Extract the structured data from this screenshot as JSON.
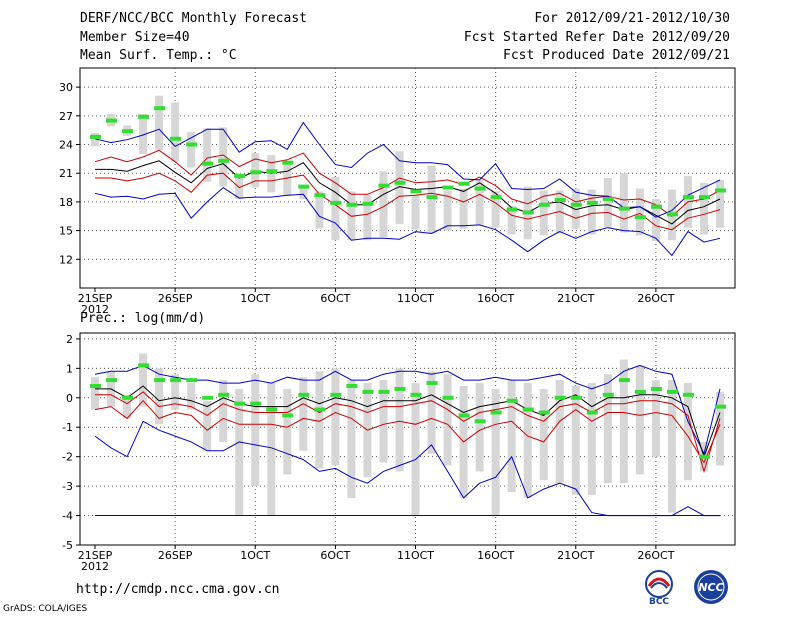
{
  "header": {
    "title": "DERF/NCC/BCC Monthly Forecast",
    "member": "Member Size=40",
    "variable": "Mean Surf. Temp.: °C",
    "period": "For 2012/09/21-2012/10/30",
    "refer": "Fcst Started Refer Date 2012/09/20",
    "produced": "Fcst Produced Date 2012/09/21"
  },
  "footer": {
    "url": "http://cmdp.ncc.cma.gov.cn",
    "grads": "GrADS: COLA/IGES",
    "logo1": "BCC",
    "logo2": "NCC"
  },
  "colors": {
    "envelope": "#0000cc",
    "spread": "#cc0000",
    "mean": "#000000",
    "observed": "#33dd33",
    "box": "#d6d6d6",
    "minline": "#0000cc"
  },
  "chart_data": [
    {
      "type": "line",
      "title": "Mean Surf. Temp.: °C",
      "x": [
        "21SEP",
        "22",
        "23",
        "24",
        "25",
        "26SEP",
        "27",
        "28",
        "29",
        "30",
        "1OCT",
        "2",
        "3",
        "4",
        "5",
        "6OCT",
        "7",
        "8",
        "9",
        "10",
        "11OCT",
        "12",
        "13",
        "14",
        "15",
        "16OCT",
        "17",
        "18",
        "19",
        "20",
        "21OCT",
        "22",
        "23",
        "24",
        "25",
        "26OCT",
        "27",
        "28",
        "29",
        "30"
      ],
      "xticks": [
        "21SEP",
        "26SEP",
        "1OCT",
        "6OCT",
        "11OCT",
        "16OCT",
        "21OCT",
        "26OCT"
      ],
      "xtick_year": "2012",
      "ylim": [
        9,
        32
      ],
      "yticks": [
        12,
        15,
        18,
        21,
        24,
        27,
        30
      ],
      "series": [
        {
          "name": "max",
          "values": [
            18.9,
            18.5,
            18.6,
            18.3,
            18.8,
            18.9,
            16.3,
            18,
            19.5,
            18.4,
            18.5,
            18.5,
            18.7,
            18.8,
            16.5,
            15.8,
            14,
            14.2,
            14.2,
            14.1,
            14.9,
            14.7,
            15.5,
            15.5,
            15.6,
            15.1,
            14,
            12.8,
            14,
            14.9,
            14.2,
            14.9,
            15.3,
            15,
            14.9,
            14.2,
            12.4,
            14.9,
            13.8,
            14.2
          ]
        },
        {
          "name": "spread_low",
          "values": [
            20.5,
            20.5,
            20.2,
            20.5,
            21,
            20.2,
            19,
            20.8,
            21,
            19.5,
            20.2,
            20.2,
            20.5,
            20.8,
            18.8,
            17.7,
            16.5,
            16.7,
            17.5,
            18.6,
            18.7,
            18.9,
            18.6,
            18,
            18.8,
            17.9,
            16.6,
            16.2,
            16.6,
            17,
            16.3,
            16.8,
            16.9,
            16.2,
            16.8,
            15.5,
            15.1,
            16.3,
            16.7,
            17.2
          ]
        },
        {
          "name": "ensemble_mean",
          "values": [
            21.4,
            21.4,
            21.2,
            21.8,
            22.3,
            21.1,
            20,
            21.5,
            22,
            20.5,
            21.2,
            21,
            21.2,
            22.1,
            20,
            19,
            17.7,
            17.7,
            18.8,
            19.6,
            19.3,
            19.4,
            19.6,
            19.1,
            20,
            18.9,
            17.4,
            16.9,
            17.8,
            18,
            17.2,
            17.6,
            17.7,
            17.2,
            17.5,
            16.6,
            15.7,
            17.1,
            17.5,
            18.3
          ]
        },
        {
          "name": "spread_high",
          "values": [
            22.2,
            22.7,
            22.2,
            22.7,
            23.4,
            22.2,
            20.8,
            22.6,
            22.9,
            21.7,
            22.5,
            22.1,
            22.4,
            23.1,
            21,
            20,
            18.8,
            18.8,
            19.5,
            20.5,
            20,
            20.1,
            20.3,
            19.8,
            20.6,
            19.7,
            18.3,
            17.8,
            18.6,
            18.9,
            18,
            18.4,
            18.6,
            18.2,
            18.3,
            17.7,
            16.5,
            18,
            18.3,
            19.2
          ]
        },
        {
          "name": "min",
          "values": [
            24.6,
            24.2,
            24.5,
            25,
            25.6,
            23.8,
            24.7,
            25.6,
            25.6,
            23.2,
            24.3,
            24.4,
            23.5,
            26.3,
            24,
            21.9,
            21.6,
            23.1,
            24,
            22.3,
            22.1,
            22.1,
            21.9,
            20.4,
            20.3,
            22,
            19.4,
            19.3,
            19.4,
            20.4,
            19,
            18.7,
            18.6,
            17.4,
            17.5,
            16.4,
            17.1,
            18.7,
            19.5,
            20.3
          ]
        }
      ],
      "observed": [
        24.8,
        26.5,
        25.4,
        26.9,
        27.8,
        24.6,
        24,
        22,
        22.3,
        20.7,
        21.1,
        21.2,
        22.1,
        19.6,
        18.7,
        17.9,
        17.7,
        17.8,
        19.7,
        20,
        19.1,
        18.5,
        19.5,
        19.9,
        19.4,
        18.5,
        17.2,
        16.9,
        17.7,
        18.2,
        17.7,
        17.9,
        18.3,
        17.3,
        16.4,
        17.5,
        16.7,
        18.5,
        18.5,
        19.2
      ],
      "boxes": [
        [
          23.8,
          25.2
        ],
        [
          25.9,
          27.2
        ],
        [
          24.9,
          26
        ],
        [
          23,
          27.2
        ],
        [
          23.4,
          29.1
        ],
        [
          22.2,
          28.4
        ],
        [
          21.6,
          25.3
        ],
        [
          20.1,
          25.7
        ],
        [
          19.6,
          25.8
        ],
        [
          18.3,
          21
        ],
        [
          19.5,
          23.1
        ],
        [
          19,
          22.9
        ],
        [
          18.6,
          22
        ],
        [
          18.3,
          19.6
        ],
        [
          15.2,
          19.1
        ],
        [
          14,
          20.6
        ],
        [
          14,
          19.1
        ],
        [
          14,
          18.8
        ],
        [
          14.3,
          21.2
        ],
        [
          15.7,
          23.3
        ],
        [
          15.1,
          18.7
        ],
        [
          14.7,
          21.8
        ],
        [
          15,
          19.2
        ],
        [
          15.2,
          19.4
        ],
        [
          15.6,
          20.3
        ],
        [
          15.3,
          19.1
        ],
        [
          14.6,
          17.6
        ],
        [
          14.1,
          19.6
        ],
        [
          14.5,
          19.2
        ],
        [
          14.7,
          19.2
        ],
        [
          15.2,
          19.4
        ],
        [
          14.6,
          19.3
        ],
        [
          15.3,
          20.5
        ],
        [
          14.8,
          21
        ],
        [
          14.5,
          19.4
        ],
        [
          13.9,
          18.3
        ],
        [
          14,
          19.3
        ],
        [
          15.3,
          20.7
        ],
        [
          14.6,
          20
        ],
        [
          15.3,
          20.3
        ]
      ]
    },
    {
      "type": "line",
      "title": "Prec.: log(mm/d)",
      "x": [
        "21SEP",
        "22",
        "23",
        "24",
        "25",
        "26SEP",
        "27",
        "28",
        "29",
        "30",
        "1OCT",
        "2",
        "3",
        "4",
        "5",
        "6OCT",
        "7",
        "8",
        "9",
        "10",
        "11OCT",
        "12",
        "13",
        "14",
        "15",
        "16OCT",
        "17",
        "18",
        "19",
        "20",
        "21OCT",
        "22",
        "23",
        "24",
        "25",
        "26OCT",
        "27",
        "28",
        "29",
        "30"
      ],
      "xticks": [
        "21SEP",
        "26SEP",
        "1OCT",
        "6OCT",
        "11OCT",
        "16OCT",
        "21OCT",
        "26OCT"
      ],
      "xtick_year": "2012",
      "ylim": [
        -5,
        2.2
      ],
      "yticks": [
        -5,
        -4,
        -3,
        -2,
        -1,
        0,
        1,
        2
      ],
      "baseline": -4,
      "series": [
        {
          "name": "max",
          "values": [
            0.8,
            0.9,
            0.9,
            1.1,
            0.8,
            0.7,
            0.6,
            0.6,
            0.5,
            0.5,
            0.6,
            0.5,
            0.7,
            0.6,
            0.6,
            0.9,
            0.6,
            0.6,
            0.8,
            0.9,
            0.9,
            0.8,
            0.9,
            0.6,
            0.6,
            0.7,
            0.6,
            0.6,
            0.7,
            0.8,
            0.5,
            0.3,
            0.5,
            0.9,
            1.1,
            0.9,
            0.8,
            -0.8,
            -1.9,
            0.3
          ]
        },
        {
          "name": "mean",
          "values": [
            0.3,
            0.3,
            0,
            0.4,
            -0.1,
            0,
            -0.1,
            -0.3,
            0,
            -0.2,
            -0.3,
            -0.3,
            -0.3,
            0,
            -0.2,
            0,
            -0.1,
            -0.3,
            -0.1,
            -0.1,
            -0.1,
            0.1,
            -0.2,
            -0.5,
            -0.3,
            -0.2,
            -0.1,
            -0.4,
            -0.6,
            -0.1,
            0.1,
            -0.3,
            0,
            0,
            0.1,
            0.1,
            0,
            -0.3,
            -2,
            -0.5
          ]
        },
        {
          "name": "spread_high",
          "values": [
            0.1,
            0.1,
            -0.2,
            0.2,
            -0.3,
            -0.2,
            -0.3,
            -0.6,
            -0.2,
            -0.4,
            -0.5,
            -0.5,
            -0.5,
            -0.2,
            -0.5,
            -0.2,
            -0.3,
            -0.5,
            -0.3,
            -0.3,
            -0.2,
            -0.1,
            -0.4,
            -0.8,
            -0.5,
            -0.4,
            -0.3,
            -0.6,
            -0.8,
            -0.3,
            -0.2,
            -0.5,
            -0.2,
            -0.2,
            -0.1,
            -0.1,
            -0.2,
            -0.6,
            -2.5,
            -0.7
          ]
        },
        {
          "name": "spread_low",
          "values": [
            -0.4,
            -0.3,
            -0.7,
            -0.1,
            -0.7,
            -0.5,
            -0.6,
            -1.1,
            -0.7,
            -0.9,
            -0.9,
            -0.9,
            -1,
            -0.7,
            -0.8,
            -0.5,
            -0.7,
            -1.1,
            -0.9,
            -0.8,
            -0.9,
            -0.7,
            -0.9,
            -1.5,
            -1.1,
            -0.9,
            -0.8,
            -1.3,
            -1.5,
            -0.8,
            -0.4,
            -0.8,
            -0.5,
            -0.5,
            -0.6,
            -0.5,
            -0.6,
            -1.3,
            -2.2,
            -0.9
          ]
        },
        {
          "name": "min",
          "values": [
            -1.3,
            -1.7,
            -2,
            -0.8,
            -1.1,
            -1.3,
            -1.5,
            -1.8,
            -1.8,
            -1.5,
            -1.6,
            -1.7,
            -1.9,
            -2.1,
            -2.5,
            -2.4,
            -2.7,
            -2.9,
            -2.5,
            -2.3,
            -2.1,
            -1.6,
            -2.5,
            -3.4,
            -2.9,
            -2.7,
            -2,
            -3.4,
            -3.1,
            -2.9,
            -3.1,
            -3.9,
            -4,
            -4,
            -4,
            -4,
            -4,
            -3.7,
            -4,
            -4
          ]
        }
      ],
      "observed": [
        0.4,
        0.6,
        0,
        1.1,
        0.6,
        0.6,
        0.6,
        0,
        0.1,
        -0.2,
        -0.2,
        -0.4,
        -0.6,
        0.1,
        -0.4,
        0.1,
        0.4,
        0.2,
        0.2,
        0.3,
        0.1,
        0.5,
        0,
        -0.6,
        -0.8,
        -0.5,
        -0.1,
        -0.4,
        -0.5,
        0,
        0,
        -0.5,
        0.1,
        0.6,
        0.2,
        0.3,
        0.2,
        0.1,
        -2,
        -0.3
      ],
      "boxes": [
        [
          -0.4,
          0.7
        ],
        [
          -0.3,
          0.9
        ],
        [
          -0.7,
          0.1
        ],
        [
          -0.3,
          1.5
        ],
        [
          -0.9,
          1
        ],
        [
          -0.4,
          0.8
        ],
        [
          -0.4,
          0.5
        ],
        [
          -1.8,
          -0.1
        ],
        [
          -1.5,
          0.6
        ],
        [
          -4,
          0.3
        ],
        [
          -3,
          0.8
        ],
        [
          -4,
          0.5
        ],
        [
          -2.6,
          0.3
        ],
        [
          -1.8,
          0.7
        ],
        [
          -2.4,
          0.9
        ],
        [
          -2.3,
          1
        ],
        [
          -3.4,
          0.6
        ],
        [
          -2.7,
          0.5
        ],
        [
          -2.2,
          0.6
        ],
        [
          -2.5,
          1
        ],
        [
          -4,
          0.5
        ],
        [
          -1.9,
          0.9
        ],
        [
          -2.3,
          0.8
        ],
        [
          -3.4,
          0.4
        ],
        [
          -2.5,
          0.5
        ],
        [
          -4,
          0.3
        ],
        [
          -3.2,
          0.6
        ],
        [
          -3.4,
          0.5
        ],
        [
          -2.8,
          0.3
        ],
        [
          -2.9,
          0.6
        ],
        [
          -3.3,
          0.4
        ],
        [
          -3.3,
          0.5
        ],
        [
          -2.9,
          0.8
        ],
        [
          -2.9,
          1.3
        ],
        [
          -2.6,
          1.1
        ],
        [
          -2,
          0.6
        ],
        [
          -3.9,
          0.6
        ],
        [
          -2.8,
          0.5
        ],
        [
          -2.5,
          -1.5
        ],
        [
          -2.3,
          0.2
        ]
      ]
    }
  ]
}
